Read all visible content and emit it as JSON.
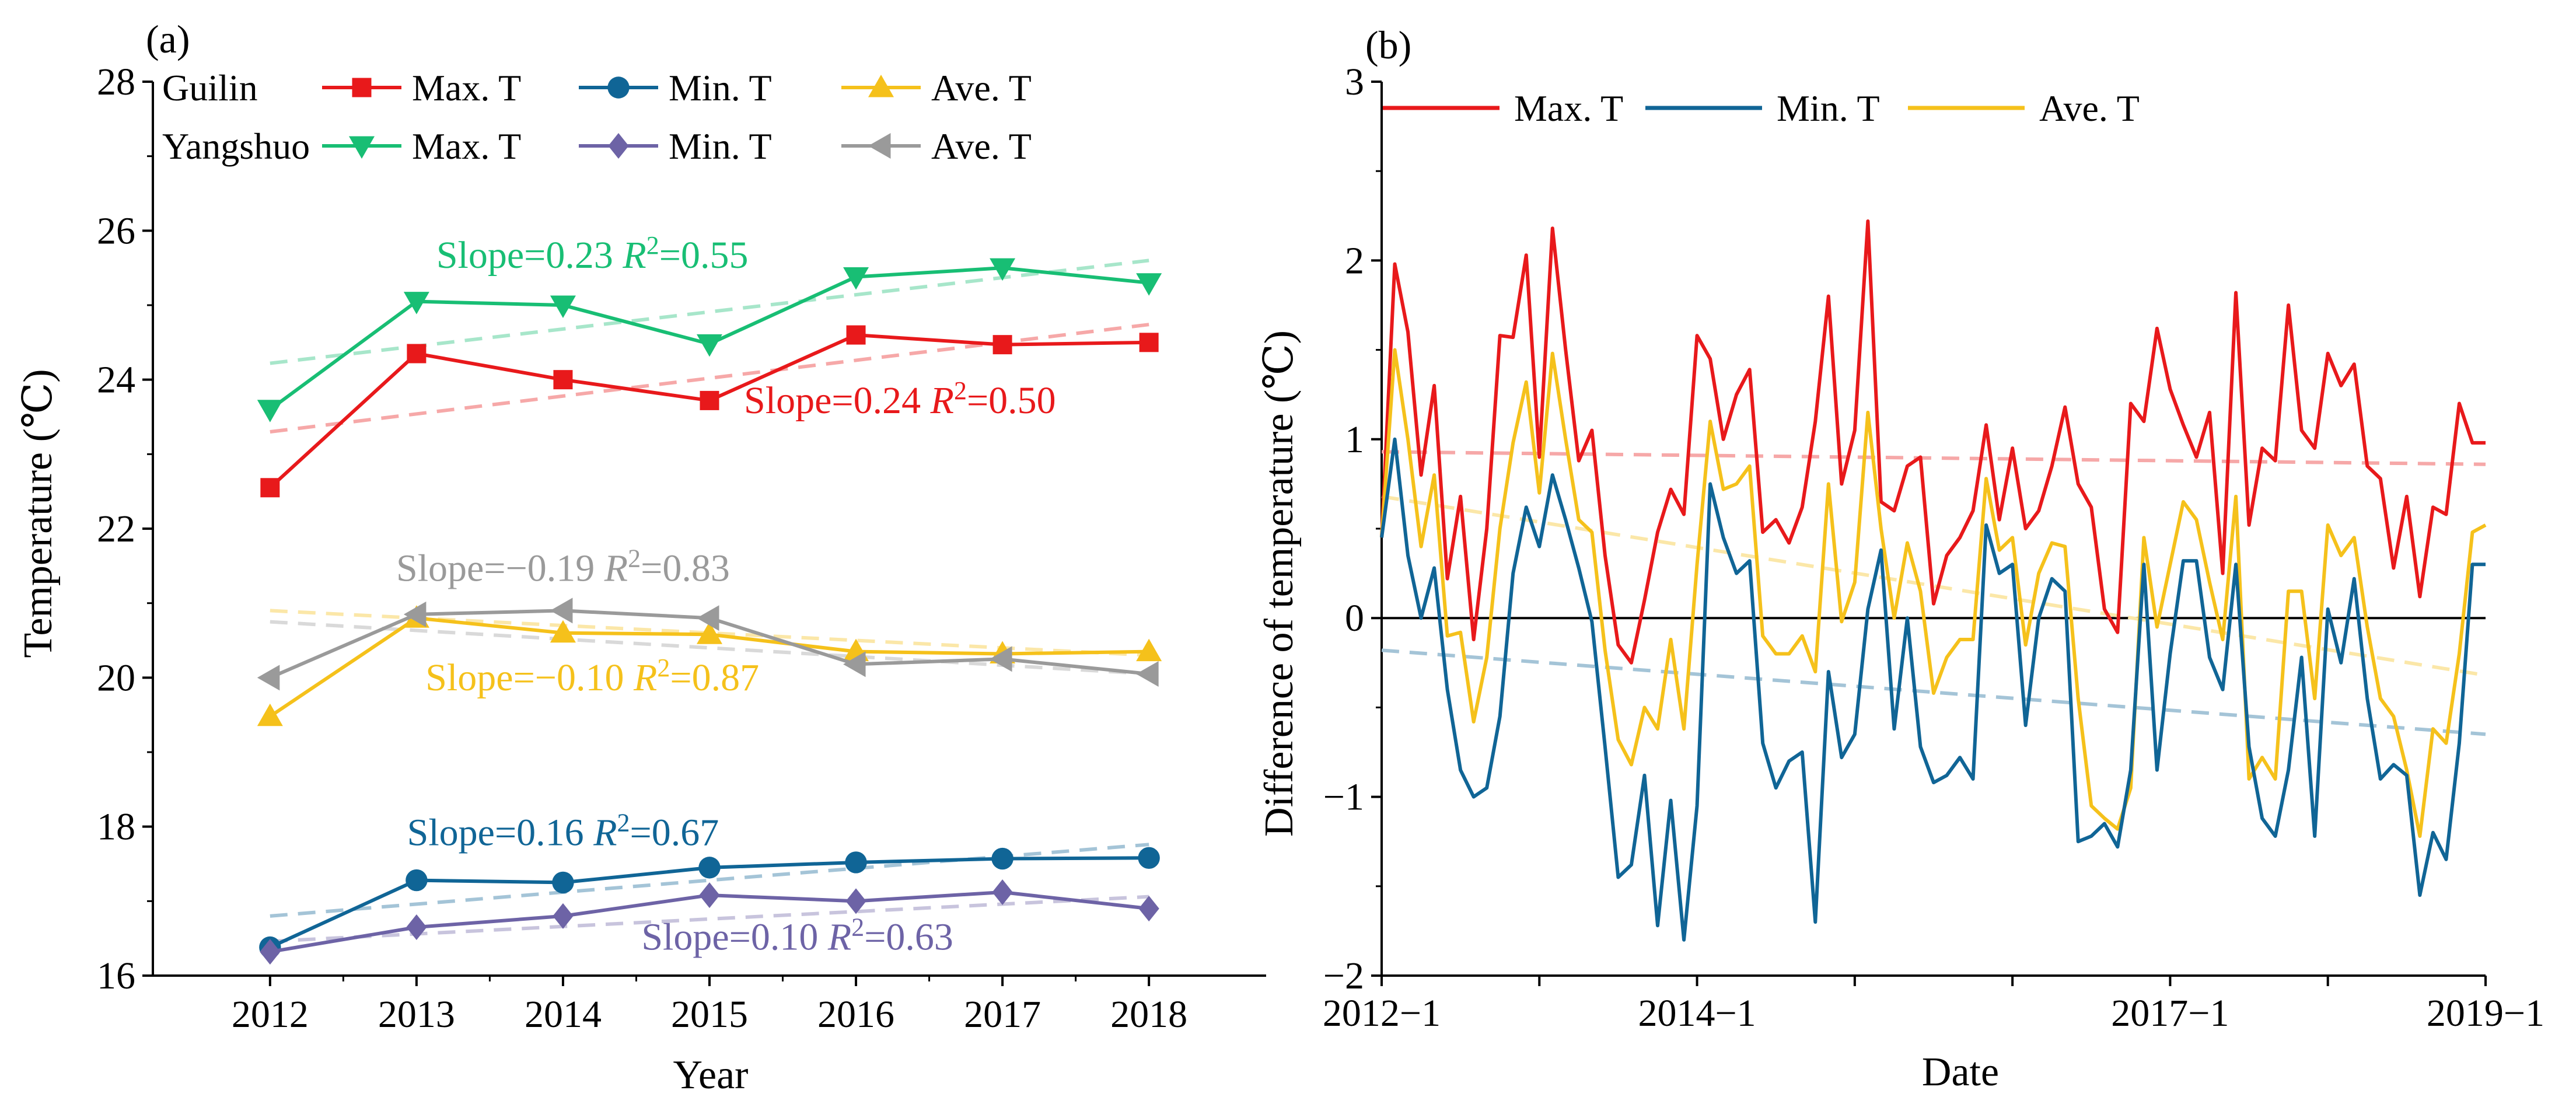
{
  "chart_data": [
    {
      "panel": "(a)",
      "type": "line",
      "xlabel": "Year",
      "ylabel": "Temperature (℃)",
      "ylim": [
        16,
        28
      ],
      "xlim": [
        2011.2,
        2018.8
      ],
      "yticks": [
        16,
        18,
        20,
        22,
        24,
        26,
        28
      ],
      "x": [
        2012,
        2013,
        2014,
        2015,
        2016,
        2017,
        2018
      ],
      "legend": {
        "groups": [
          "Guilin",
          "Yangshuo"
        ],
        "entries": [
          "Max. T",
          "Min. T",
          "Ave. T"
        ]
      },
      "series": [
        {
          "id": "g_max",
          "name": "Max. T",
          "group": "Guilin",
          "color": "#e8191b",
          "marker": "square",
          "values": [
            22.55,
            24.35,
            24.0,
            23.72,
            24.6,
            24.47,
            24.5
          ],
          "trend": [
            23.3,
            24.74
          ]
        },
        {
          "id": "g_min",
          "name": "Min. T",
          "group": "Guilin",
          "color": "#106596",
          "marker": "circle",
          "values": [
            16.38,
            17.28,
            17.25,
            17.45,
            17.52,
            17.57,
            17.58
          ],
          "trend": [
            16.8,
            17.76
          ]
        },
        {
          "id": "g_ave",
          "name": "Ave. T",
          "group": "Guilin",
          "color": "#f5c11b",
          "marker": "triangle-up",
          "values": [
            19.48,
            20.8,
            20.6,
            20.58,
            20.35,
            20.32,
            20.35
          ],
          "trend": [
            20.9,
            20.3
          ]
        },
        {
          "id": "y_max",
          "name": "Max. T",
          "group": "Yangshuo",
          "color": "#18be74",
          "marker": "triangle-down",
          "values": [
            23.6,
            25.05,
            25.0,
            24.48,
            25.38,
            25.5,
            25.3
          ],
          "trend": [
            24.22,
            25.6
          ]
        },
        {
          "id": "y_min",
          "name": "Min. T",
          "group": "Yangshuo",
          "color": "#6d63a6",
          "marker": "diamond",
          "values": [
            16.32,
            16.65,
            16.8,
            17.08,
            17.0,
            17.12,
            16.9
          ],
          "trend": [
            16.46,
            17.06
          ]
        },
        {
          "id": "y_ave",
          "name": "Ave. T",
          "group": "Yangshuo",
          "color": "#9a9a9a",
          "marker": "triangle-left",
          "values": [
            20.0,
            20.85,
            20.9,
            20.8,
            20.18,
            20.25,
            20.05
          ],
          "trend": [
            20.75,
            20.05
          ]
        }
      ],
      "annotations": [
        {
          "series": "y_max",
          "slope": "0.23",
          "r2": "0.55",
          "x": 2014.2,
          "y": 25.5
        },
        {
          "series": "g_max",
          "slope": "0.24",
          "r2": "0.50",
          "x": 2016.3,
          "y": 23.55
        },
        {
          "series": "y_ave",
          "slope": "−0.19",
          "r2": "0.83",
          "x": 2014.0,
          "y": 21.3
        },
        {
          "series": "g_ave",
          "slope": "−0.10",
          "r2": "0.87",
          "x": 2014.2,
          "y": 19.83
        },
        {
          "series": "g_min",
          "slope": "0.16",
          "r2": "0.67",
          "x": 2014.0,
          "y": 17.75
        },
        {
          "series": "y_min",
          "slope": "0.10",
          "r2": "0.63",
          "x": 2015.6,
          "y": 16.35
        }
      ]
    },
    {
      "panel": "(b)",
      "type": "line",
      "xlabel": "Date",
      "ylabel": "Difference of temperature (℃)",
      "ylim": [
        -2,
        3
      ],
      "yticks": [
        -2,
        -1,
        0,
        1,
        2,
        3
      ],
      "x_start": "2012-1",
      "x_end": "2019-1",
      "n_months": 85,
      "xtick_labels": [
        {
          "label": "2012−1",
          "index": 0
        },
        {
          "label": "2014−1",
          "index": 24
        },
        {
          "label": "2017−1",
          "index": 60
        },
        {
          "label": "2019−1",
          "index": 84
        }
      ],
      "legend": {
        "entries": [
          "Max. T",
          "Min. T",
          "Ave. T"
        ]
      },
      "series": [
        {
          "id": "d_max",
          "name": "Max. T",
          "color": "#e8191b",
          "trend": [
            0.93,
            0.86
          ],
          "values": [
            0.45,
            1.98,
            1.6,
            0.8,
            1.3,
            0.22,
            0.68,
            -0.12,
            0.5,
            1.58,
            1.57,
            2.03,
            0.9,
            2.18,
            1.5,
            0.88,
            1.05,
            0.35,
            -0.15,
            -0.25,
            0.1,
            0.48,
            0.72,
            0.58,
            1.58,
            1.45,
            1.0,
            1.25,
            1.39,
            0.48,
            0.55,
            0.42,
            0.62,
            1.1,
            1.8,
            0.75,
            1.05,
            2.22,
            0.65,
            0.6,
            0.85,
            0.9,
            0.08,
            0.35,
            0.45,
            0.6,
            1.08,
            0.55,
            0.95,
            0.5,
            0.6,
            0.85,
            1.18,
            0.75,
            0.62,
            0.05,
            -0.08,
            1.2,
            1.1,
            1.62,
            1.28,
            1.08,
            0.9,
            1.15,
            0.25,
            1.82,
            0.52,
            0.95,
            0.88,
            1.75,
            1.05,
            0.95,
            1.48,
            1.3,
            1.42,
            0.85,
            0.78,
            0.28,
            0.68,
            0.12,
            0.62,
            0.58,
            1.2,
            0.98,
            0.98
          ]
        },
        {
          "id": "d_min",
          "name": "Min. T",
          "color": "#106596",
          "trend": [
            -0.18,
            -0.65
          ],
          "values": [
            0.45,
            1.0,
            0.35,
            0.0,
            0.28,
            -0.4,
            -0.85,
            -1.0,
            -0.95,
            -0.55,
            0.25,
            0.62,
            0.4,
            0.8,
            0.55,
            0.28,
            -0.02,
            -0.72,
            -1.45,
            -1.38,
            -0.88,
            -1.72,
            -1.02,
            -1.8,
            -1.05,
            0.75,
            0.45,
            0.25,
            0.32,
            -0.7,
            -0.95,
            -0.8,
            -0.75,
            -1.7,
            -0.3,
            -0.78,
            -0.65,
            0.05,
            0.38,
            -0.62,
            0.0,
            -0.72,
            -0.92,
            -0.88,
            -0.78,
            -0.9,
            0.52,
            0.25,
            0.3,
            -0.6,
            0.0,
            0.22,
            0.15,
            -1.25,
            -1.22,
            -1.15,
            -1.28,
            -0.85,
            0.3,
            -0.85,
            -0.2,
            0.32,
            0.32,
            -0.22,
            -0.4,
            0.3,
            -0.72,
            -1.12,
            -1.22,
            -0.85,
            -0.22,
            -1.22,
            0.05,
            -0.25,
            0.22,
            -0.45,
            -0.9,
            -0.82,
            -0.88,
            -1.55,
            -1.2,
            -1.35,
            -0.7,
            0.3,
            0.3
          ]
        },
        {
          "id": "d_ave",
          "name": "Ave. T",
          "color": "#f5c11b",
          "trend": [
            0.68,
            -0.32
          ],
          "values": [
            0.45,
            1.5,
            1.0,
            0.4,
            0.8,
            -0.1,
            -0.08,
            -0.58,
            -0.22,
            0.5,
            0.98,
            1.32,
            0.7,
            1.48,
            1.0,
            0.55,
            0.48,
            -0.18,
            -0.68,
            -0.82,
            -0.5,
            -0.62,
            -0.12,
            -0.62,
            0.3,
            1.1,
            0.72,
            0.75,
            0.85,
            -0.1,
            -0.2,
            -0.2,
            -0.1,
            -0.3,
            0.75,
            -0.02,
            0.2,
            1.15,
            0.5,
            0.0,
            0.42,
            0.15,
            -0.42,
            -0.22,
            -0.12,
            -0.12,
            0.78,
            0.38,
            0.45,
            -0.15,
            0.25,
            0.42,
            0.4,
            -0.45,
            -1.05,
            -1.12,
            -1.18,
            -0.95,
            0.45,
            -0.05,
            0.3,
            0.65,
            0.55,
            0.2,
            -0.12,
            0.68,
            -0.9,
            -0.78,
            -0.9,
            0.15,
            0.15,
            -0.45,
            0.52,
            0.35,
            0.45,
            -0.05,
            -0.45,
            -0.55,
            -0.85,
            -1.22,
            -0.62,
            -0.7,
            -0.2,
            0.48,
            0.52
          ]
        }
      ]
    }
  ]
}
